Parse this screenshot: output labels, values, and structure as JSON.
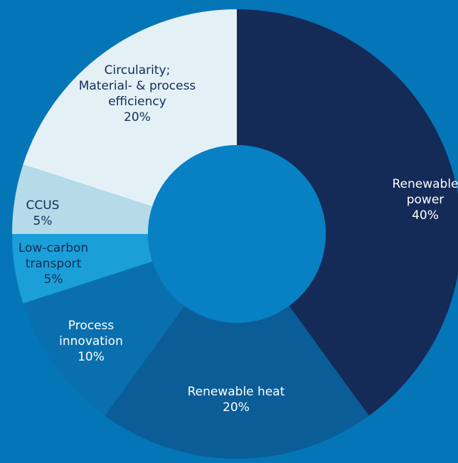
{
  "chart_data": {
    "type": "donut",
    "categories": [
      "Renewable power",
      "Renewable heat",
      "Process innovation",
      "Low-carbon transport",
      "CCUS",
      "Circularity; Material- & process efficiency"
    ],
    "values": [
      40,
      20,
      10,
      5,
      5,
      20
    ],
    "value_labels": [
      "40%",
      "20%",
      "10%",
      "5%",
      "5%",
      "20%"
    ],
    "colors": [
      "#142b57",
      "#0b5d97",
      "#0a6fae",
      "#1a9fd8",
      "#b5dbe8",
      "#e3f1f6"
    ],
    "label_colors": [
      "#ffffff",
      "#ffffff",
      "#ffffff",
      "#142b57",
      "#142b57",
      "#142b57"
    ]
  }
}
